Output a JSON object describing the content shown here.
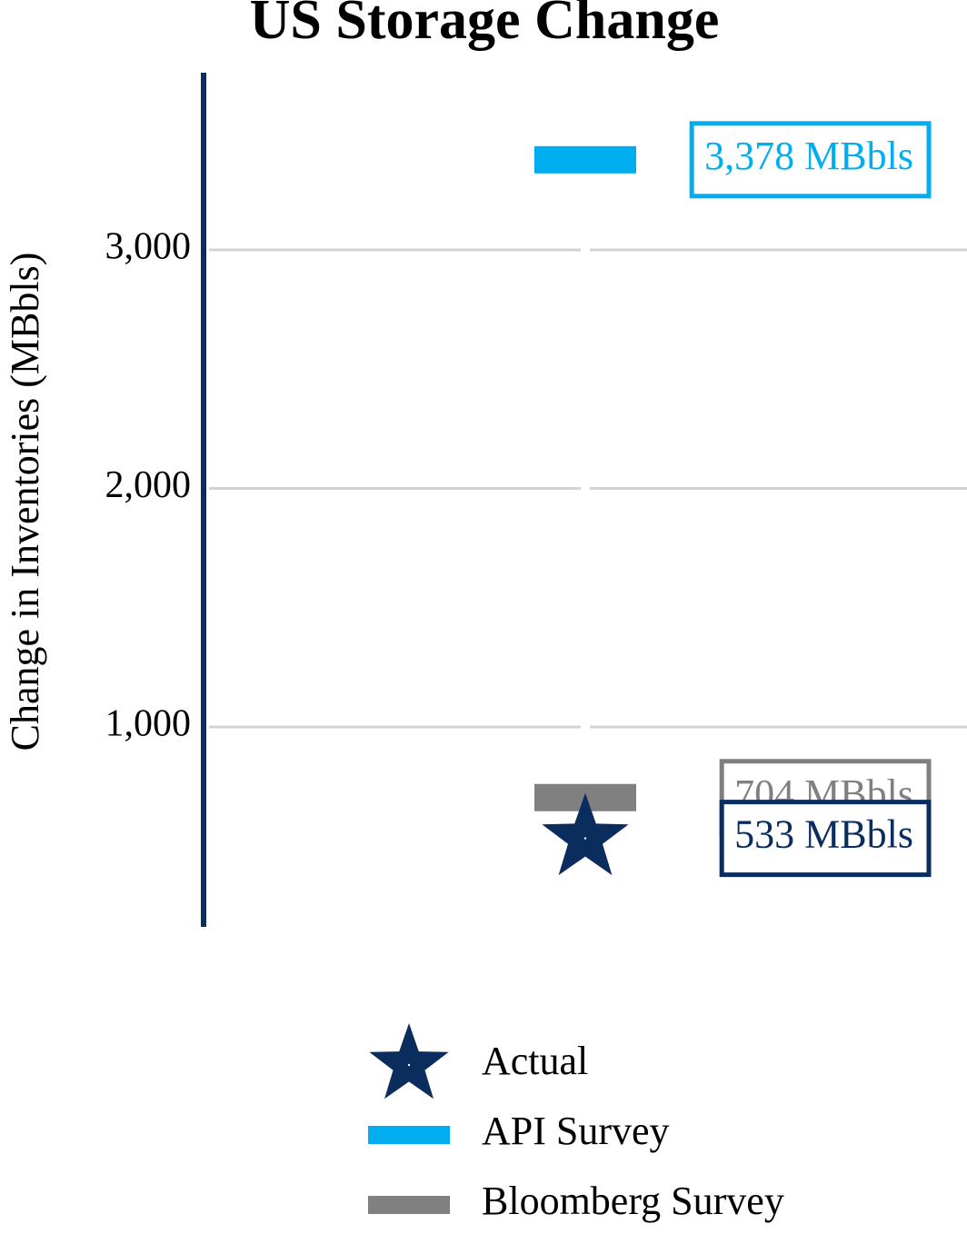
{
  "chart_data": {
    "type": "dot",
    "title": "US Storage Change",
    "y_label": "Change in Inventories (MBbls)",
    "categories": [
      null
    ],
    "series": [
      {
        "name": "Actual",
        "color": "#0b2d5e",
        "marker": "star",
        "values": [
          533
        ],
        "value_labels": [
          "533 MBbls"
        ]
      },
      {
        "name": "API Survey",
        "color": "#00aeef",
        "marker": "bar",
        "values": [
          3378
        ],
        "value_labels": [
          "3,378 MBbls"
        ]
      },
      {
        "name": "Bloomberg Survey",
        "color": "#808080",
        "marker": "bar",
        "values": [
          704
        ],
        "value_labels": [
          "704 MBbls"
        ]
      }
    ],
    "ylim": [
      162,
      3743
    ],
    "yticks": [
      {
        "value": 1000,
        "label": "1,000"
      },
      {
        "value": 2000,
        "label": "2,000"
      },
      {
        "value": 3000,
        "label": "3,000"
      }
    ],
    "grid": true,
    "legend": "bottom"
  }
}
